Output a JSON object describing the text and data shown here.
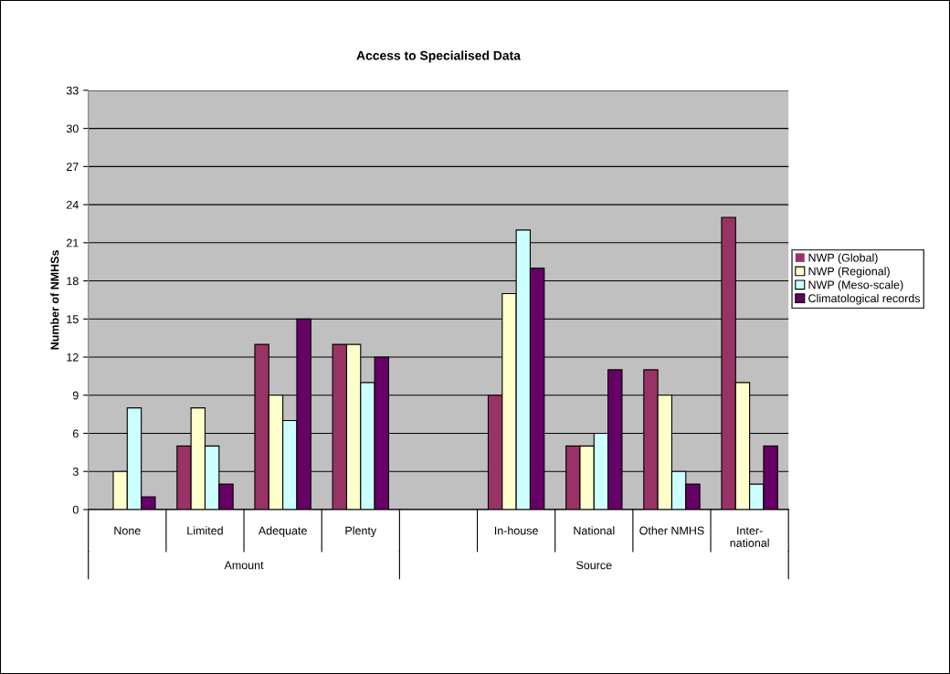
{
  "chart_data": {
    "type": "bar",
    "title": "Access to Specialised Data",
    "ylabel": "Number of NMHSs",
    "categories": [
      "None",
      "Limited",
      "Adequate",
      "Plenty",
      null,
      "In-house",
      "National",
      "Other NMHS",
      "Inter-\nnational"
    ],
    "series": [
      {
        "name": "NWP (Global)",
        "color": "#993366",
        "values": [
          0,
          5,
          13,
          13,
          null,
          9,
          5,
          11,
          23
        ]
      },
      {
        "name": "NWP (Regional)",
        "color": "#ffffcc",
        "values": [
          3,
          8,
          9,
          13,
          null,
          17,
          5,
          9,
          10
        ]
      },
      {
        "name": "NWP (Meso-scale)",
        "color": "#ccffff",
        "values": [
          8,
          5,
          7,
          10,
          null,
          22,
          6,
          3,
          2
        ]
      },
      {
        "name": "Climatological records",
        "color": "#660066",
        "values": [
          1,
          2,
          15,
          12,
          null,
          19,
          11,
          2,
          5
        ]
      }
    ],
    "annotations": [
      "Amount",
      "Source"
    ],
    "ylim": [
      0,
      33
    ],
    "yticks": [
      0,
      3,
      6,
      9,
      12,
      15,
      18,
      21,
      24,
      27,
      30,
      33
    ],
    "grid": "y",
    "legend": "right"
  }
}
